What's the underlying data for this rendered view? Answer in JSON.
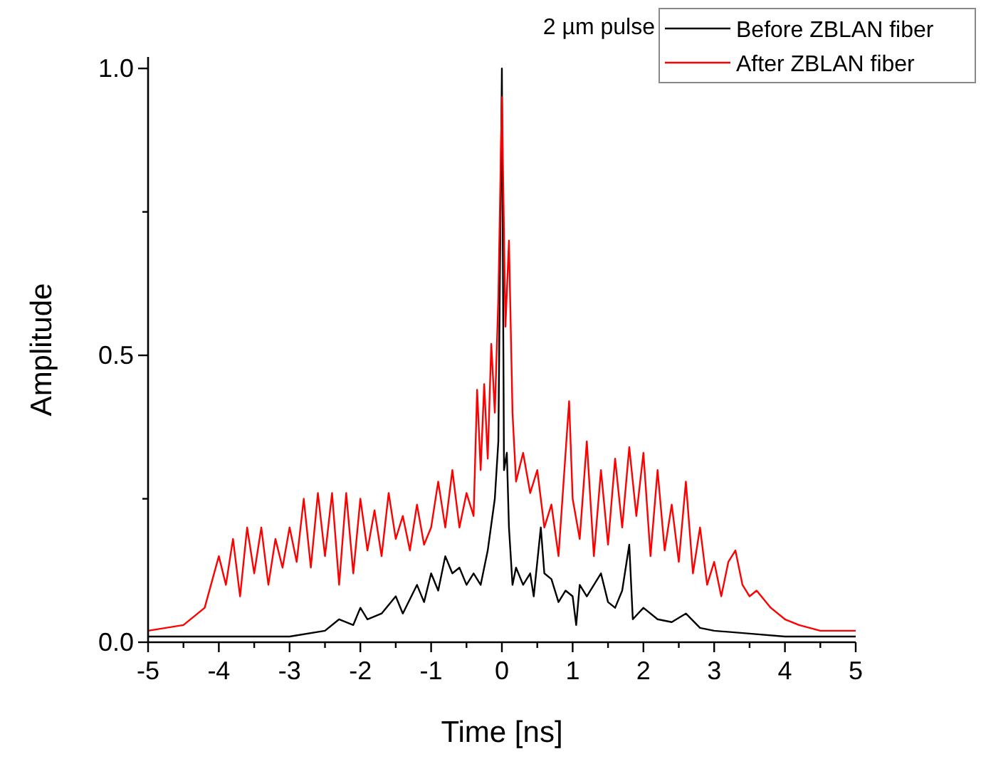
{
  "chart_data": {
    "type": "line",
    "xlabel": "Time [ns]",
    "ylabel": "Amplitude",
    "legend_title": "2 µm pulse",
    "legend": "top right",
    "xlim": [
      -5,
      5
    ],
    "ylim": [
      0,
      1.02
    ],
    "xticks": [
      -5,
      {
        "value": -4.5,
        "label": null
      },
      -4,
      {
        "value": -3.5,
        "label": null
      },
      -3,
      {
        "value": -2.5,
        "label": null
      },
      -2,
      {
        "value": -1.5,
        "label": null
      },
      -1,
      {
        "value": -0.5,
        "label": null
      },
      0,
      {
        "value": 0.5,
        "label": null
      },
      1,
      {
        "value": 1.5,
        "label": null
      },
      2,
      {
        "value": 2.5,
        "label": null
      },
      3,
      {
        "value": 3.5,
        "label": null
      },
      4,
      {
        "value": 4.5,
        "label": null
      },
      5
    ],
    "yticks": [
      {
        "value": 0,
        "label": "0.0"
      },
      {
        "value": 0.25,
        "label": null
      },
      {
        "value": 0.5,
        "label": "0.5"
      },
      {
        "value": 0.75,
        "label": null
      },
      {
        "value": 1,
        "label": "1.0"
      }
    ],
    "series": [
      {
        "name": "Before ZBLAN fiber",
        "color": "#000000",
        "x": [
          -5,
          -4.5,
          -4,
          -3.5,
          -3,
          -2.5,
          -2.3,
          -2.1,
          -2,
          -1.9,
          -1.7,
          -1.5,
          -1.4,
          -1.2,
          -1.1,
          -1,
          -0.9,
          -0.8,
          -0.7,
          -0.6,
          -0.5,
          -0.4,
          -0.3,
          -0.2,
          -0.1,
          -0.05,
          0,
          0.03,
          0.07,
          0.1,
          0.15,
          0.2,
          0.3,
          0.4,
          0.45,
          0.55,
          0.6,
          0.7,
          0.8,
          0.9,
          1,
          1.05,
          1.1,
          1.2,
          1.4,
          1.5,
          1.6,
          1.7,
          1.8,
          1.85,
          2,
          2.2,
          2.4,
          2.6,
          2.8,
          3,
          3.5,
          4,
          4.5,
          5
        ],
        "values": [
          0.01,
          0.01,
          0.01,
          0.01,
          0.01,
          0.02,
          0.04,
          0.03,
          0.06,
          0.04,
          0.05,
          0.08,
          0.05,
          0.1,
          0.07,
          0.12,
          0.09,
          0.15,
          0.12,
          0.13,
          0.1,
          0.12,
          0.1,
          0.16,
          0.25,
          0.35,
          1.0,
          0.3,
          0.33,
          0.2,
          0.1,
          0.13,
          0.1,
          0.12,
          0.08,
          0.2,
          0.12,
          0.11,
          0.07,
          0.09,
          0.08,
          0.03,
          0.1,
          0.08,
          0.12,
          0.07,
          0.06,
          0.09,
          0.17,
          0.04,
          0.06,
          0.04,
          0.035,
          0.05,
          0.025,
          0.02,
          0.015,
          0.01,
          0.01,
          0.01
        ]
      },
      {
        "name": "After ZBLAN fiber",
        "color": "#ff0000",
        "x": [
          -5,
          -4.5,
          -4.2,
          -4,
          -3.9,
          -3.8,
          -3.7,
          -3.6,
          -3.5,
          -3.4,
          -3.3,
          -3.2,
          -3.1,
          -3,
          -2.9,
          -2.8,
          -2.7,
          -2.6,
          -2.5,
          -2.4,
          -2.3,
          -2.2,
          -2.1,
          -2,
          -1.9,
          -1.8,
          -1.7,
          -1.6,
          -1.5,
          -1.4,
          -1.3,
          -1.2,
          -1.1,
          -1,
          -0.9,
          -0.8,
          -0.7,
          -0.6,
          -0.5,
          -0.4,
          -0.35,
          -0.3,
          -0.25,
          -0.2,
          -0.15,
          -0.1,
          -0.05,
          0,
          0.05,
          0.1,
          0.15,
          0.2,
          0.3,
          0.4,
          0.5,
          0.6,
          0.7,
          0.8,
          0.95,
          1,
          1.1,
          1.2,
          1.3,
          1.4,
          1.5,
          1.6,
          1.7,
          1.8,
          1.9,
          2,
          2.1,
          2.2,
          2.3,
          2.4,
          2.5,
          2.6,
          2.7,
          2.8,
          2.9,
          3,
          3.1,
          3.2,
          3.3,
          3.4,
          3.5,
          3.6,
          3.8,
          4,
          4.2,
          4.5,
          5
        ],
        "values": [
          0.02,
          0.03,
          0.06,
          0.15,
          0.1,
          0.18,
          0.08,
          0.2,
          0.12,
          0.2,
          0.1,
          0.18,
          0.13,
          0.2,
          0.14,
          0.25,
          0.13,
          0.26,
          0.15,
          0.26,
          0.1,
          0.26,
          0.12,
          0.25,
          0.16,
          0.23,
          0.15,
          0.26,
          0.18,
          0.22,
          0.16,
          0.24,
          0.17,
          0.2,
          0.28,
          0.2,
          0.3,
          0.2,
          0.26,
          0.22,
          0.44,
          0.3,
          0.45,
          0.32,
          0.52,
          0.4,
          0.6,
          0.95,
          0.55,
          0.7,
          0.4,
          0.28,
          0.33,
          0.26,
          0.3,
          0.2,
          0.24,
          0.15,
          0.42,
          0.25,
          0.18,
          0.35,
          0.15,
          0.3,
          0.17,
          0.32,
          0.2,
          0.34,
          0.22,
          0.33,
          0.15,
          0.3,
          0.16,
          0.24,
          0.14,
          0.28,
          0.12,
          0.2,
          0.1,
          0.14,
          0.08,
          0.14,
          0.16,
          0.1,
          0.08,
          0.09,
          0.06,
          0.04,
          0.03,
          0.02,
          0.02
        ]
      }
    ]
  }
}
